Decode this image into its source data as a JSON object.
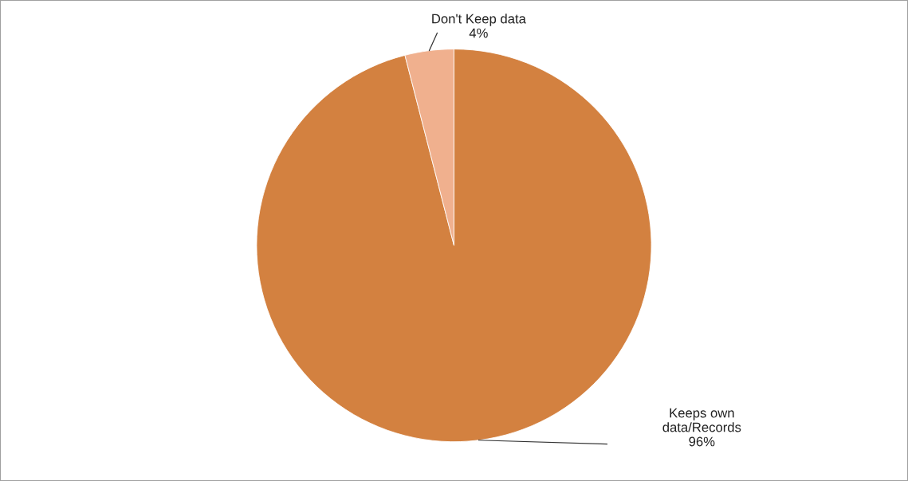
{
  "chart_data": {
    "type": "pie",
    "categories": [
      "Keeps own\ndata/Records",
      "Don't Keep data"
    ],
    "values": [
      96,
      4
    ],
    "value_labels": [
      "96%",
      "4%"
    ],
    "colors": [
      "#d38140",
      "#f0b08e"
    ],
    "legend": false
  }
}
